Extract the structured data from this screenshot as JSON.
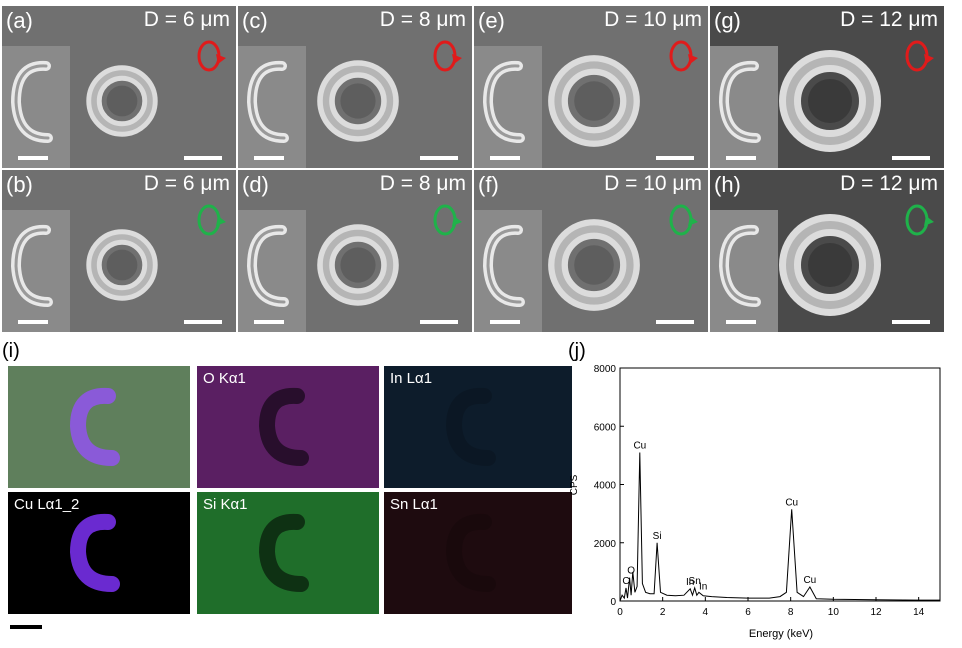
{
  "sem_panels": [
    {
      "letter": "(a)",
      "d": "D = 6 μm",
      "dir": "cw"
    },
    {
      "letter": "(c)",
      "d": "D = 8 μm",
      "dir": "cw"
    },
    {
      "letter": "(e)",
      "d": "D = 10 μm",
      "dir": "cw"
    },
    {
      "letter": "(g)",
      "d": "D = 12 μm",
      "dir": "cw"
    },
    {
      "letter": "(b)",
      "d": "D = 6 μm",
      "dir": "ccw"
    },
    {
      "letter": "(d)",
      "d": "D = 8 μm",
      "dir": "ccw"
    },
    {
      "letter": "(f)",
      "d": "D = 10 μm",
      "dir": "ccw"
    },
    {
      "letter": "(h)",
      "d": "D = 12 μm",
      "dir": "ccw"
    }
  ],
  "arrow_colors": {
    "cw": "#e01b1b",
    "ccw": "#1fb24a"
  },
  "label_i": "(i)",
  "label_j": "(j)",
  "maps": [
    {
      "label": "",
      "color": "#5f7f5c"
    },
    {
      "label": "O Kα1",
      "color": "#5a1f62"
    },
    {
      "label": "In Lα1",
      "color": "#0d1c2b"
    },
    {
      "label": "Cu Lα1_2",
      "color": "#000000"
    },
    {
      "label": "Si Kα1",
      "color": "#1f6e2a"
    },
    {
      "label": "Sn Lα1",
      "color": "#1e0b0f"
    }
  ],
  "chart_data": {
    "type": "line",
    "xlabel": "Energy (keV)",
    "ylabel": "CPS",
    "xlim": [
      0,
      15
    ],
    "ylim": [
      0,
      8000
    ],
    "xticks": [
      0,
      2,
      4,
      6,
      8,
      10,
      12,
      14
    ],
    "yticks": [
      0,
      2000,
      4000,
      6000,
      8000
    ],
    "x": [
      0,
      0.1,
      0.2,
      0.28,
      0.35,
      0.45,
      0.52,
      0.6,
      0.7,
      0.8,
      0.93,
      1.05,
      1.2,
      1.4,
      1.6,
      1.74,
      1.9,
      2.2,
      2.6,
      3.0,
      3.29,
      3.4,
      3.5,
      3.6,
      3.7,
      3.9,
      4.3,
      5.0,
      6.0,
      7.0,
      7.5,
      7.8,
      8.05,
      8.3,
      8.6,
      8.9,
      9.2,
      10,
      12,
      14,
      15
    ],
    "y": [
      0,
      200,
      100,
      450,
      100,
      800,
      200,
      1000,
      300,
      500,
      5100,
      600,
      300,
      250,
      250,
      2000,
      300,
      200,
      180,
      200,
      420,
      200,
      450,
      200,
      300,
      180,
      150,
      120,
      100,
      100,
      150,
      300,
      3150,
      300,
      150,
      480,
      80,
      60,
      40,
      30,
      30
    ],
    "annotations": [
      {
        "text": "C",
        "x": 0.28,
        "y": 450
      },
      {
        "text": "O",
        "x": 0.52,
        "y": 800
      },
      {
        "text": "Cu",
        "x": 0.93,
        "y": 5100
      },
      {
        "text": "Si",
        "x": 1.74,
        "y": 2000
      },
      {
        "text": "In",
        "x": 3.29,
        "y": 420
      },
      {
        "text": "Sn",
        "x": 3.5,
        "y": 450
      },
      {
        "text": "In",
        "x": 3.9,
        "y": 250
      },
      {
        "text": "Cu",
        "x": 8.05,
        "y": 3150
      },
      {
        "text": "Cu",
        "x": 8.9,
        "y": 480
      }
    ]
  }
}
